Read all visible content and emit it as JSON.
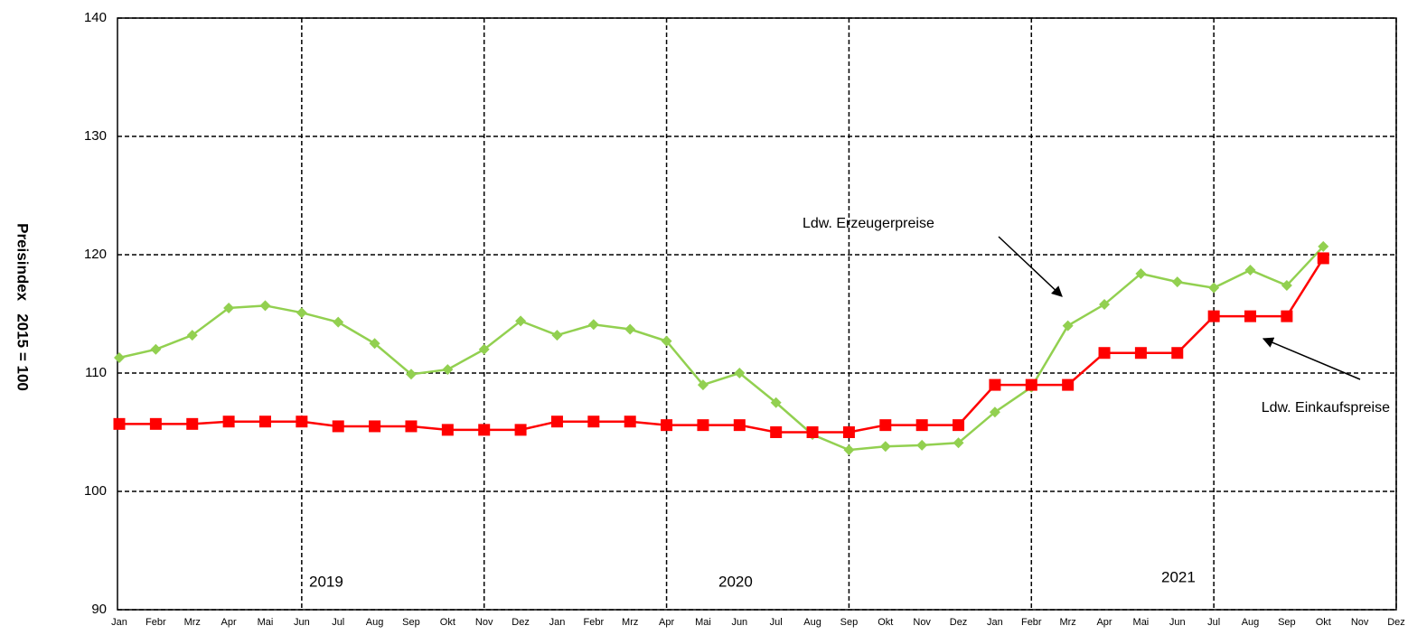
{
  "chart_data": {
    "type": "line",
    "y_label": "Preisindex   2015 = 100",
    "categories": [
      "Jan",
      "Febr",
      "Mrz",
      "Apr",
      "Mai",
      "Jun",
      "Jul",
      "Aug",
      "Sep",
      "Okt",
      "Nov",
      "Dez",
      "Jan",
      "Febr",
      "Mrz",
      "Apr",
      "Mai",
      "Jun",
      "Jul",
      "Aug",
      "Sep",
      "Okt",
      "Nov",
      "Dez",
      "Jan",
      "Febr",
      "Mrz",
      "Apr",
      "Mai",
      "Jun",
      "Jul",
      "Aug",
      "Sep",
      "Okt",
      "Nov",
      "Dez"
    ],
    "series": [
      {
        "name": "Ldw. Erzeugerpreise",
        "color": "#92d050",
        "marker": "diamond",
        "values": [
          111.3,
          112.0,
          113.2,
          115.5,
          115.7,
          115.1,
          114.3,
          112.5,
          109.9,
          110.3,
          112.0,
          114.4,
          113.2,
          114.1,
          113.7,
          112.7,
          109.0,
          110.0,
          107.5,
          104.8,
          103.5,
          103.8,
          103.9,
          104.1,
          106.7,
          108.8,
          114.0,
          115.8,
          118.4,
          117.7,
          117.2,
          118.7,
          117.4,
          120.7,
          null,
          null
        ]
      },
      {
        "name": "Ldw. Einkaufspreise",
        "color": "#ff0000",
        "marker": "square",
        "values": [
          105.7,
          105.7,
          105.7,
          105.9,
          105.9,
          105.9,
          105.5,
          105.5,
          105.5,
          105.2,
          105.2,
          105.2,
          105.9,
          105.9,
          105.9,
          105.6,
          105.6,
          105.6,
          105.0,
          105.0,
          105.0,
          105.6,
          105.6,
          105.6,
          109.0,
          109.0,
          109.0,
          111.7,
          111.7,
          111.7,
          114.8,
          114.8,
          114.8,
          119.7,
          null,
          null
        ]
      }
    ],
    "year_labels": [
      "2019",
      "2020",
      "2021"
    ],
    "ylim": [
      90,
      140
    ],
    "yticks": [
      90,
      100,
      110,
      120,
      130,
      140
    ],
    "grid": true,
    "x_grid_every": 5
  }
}
